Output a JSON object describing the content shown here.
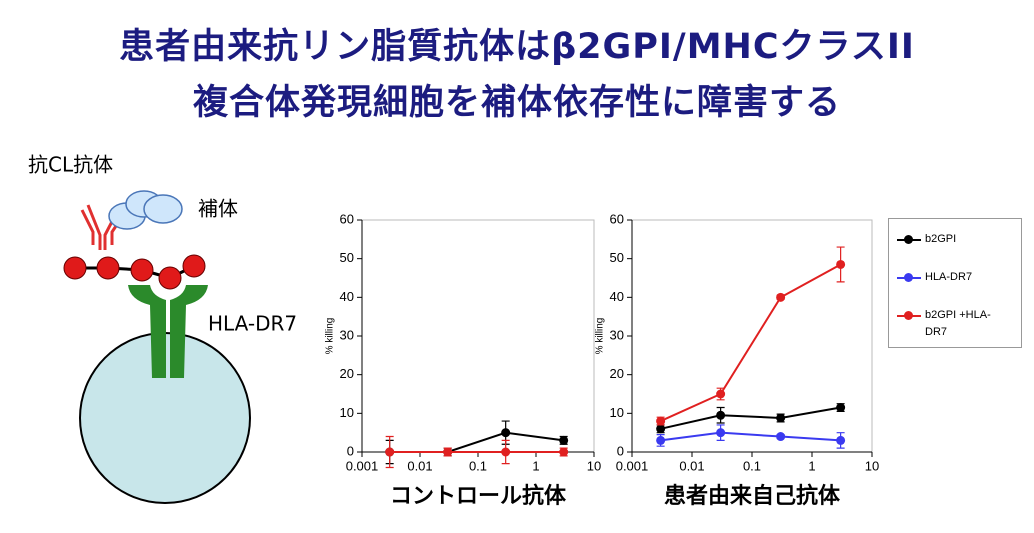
{
  "title": {
    "line1": "患者由来抗リン脂質抗体はβ2GPI/MHCクラスII",
    "line2": "複合体発現細胞を補体依存性に障害する"
  },
  "diagram": {
    "antibody": "抗CL抗体",
    "complement": "補体",
    "receptor": "HLA-DR7"
  },
  "chart_data": [
    {
      "type": "line",
      "xlabel": "コントロール抗体",
      "ylabel": "% killing",
      "xscale": "log",
      "xlim": [
        0.001,
        10
      ],
      "xticks": [
        0.001,
        0.01,
        0.1,
        1,
        10
      ],
      "ylim": [
        0,
        60
      ],
      "yticks": [
        0,
        10,
        20,
        30,
        40,
        50,
        60
      ],
      "x": [
        0.003,
        0.03,
        0.3,
        3
      ],
      "series": [
        {
          "color": "#000000",
          "values": [
            0,
            0,
            5,
            3
          ],
          "errors": [
            3,
            1,
            3,
            1
          ]
        },
        {
          "color": "#e02020",
          "values": [
            0,
            0,
            0,
            0
          ],
          "errors": [
            4,
            1,
            3,
            1
          ]
        }
      ]
    },
    {
      "type": "line",
      "xlabel": "患者由来自己抗体",
      "ylabel": "% killing",
      "xscale": "log",
      "xlim": [
        0.001,
        10
      ],
      "xticks": [
        0.001,
        0.01,
        0.1,
        1,
        10
      ],
      "ylim": [
        0,
        60
      ],
      "yticks": [
        0,
        10,
        20,
        30,
        40,
        50,
        60
      ],
      "x": [
        0.003,
        0.03,
        0.3,
        3
      ],
      "legend": "right",
      "series": [
        {
          "name": "b2GPI",
          "color": "#000000",
          "values": [
            6,
            9.5,
            8.8,
            11.5
          ],
          "errors": [
            1,
            2,
            1,
            1
          ]
        },
        {
          "name": "HLA-DR7",
          "color": "#3a3af0",
          "values": [
            3,
            5,
            4,
            3
          ],
          "errors": [
            1.5,
            2,
            0.5,
            2
          ]
        },
        {
          "name": "b2GPI +HLA-DR7",
          "color": "#e02020",
          "values": [
            8,
            15,
            40,
            48.5
          ],
          "errors": [
            1,
            1.5,
            0.5,
            4.5
          ]
        }
      ]
    }
  ]
}
